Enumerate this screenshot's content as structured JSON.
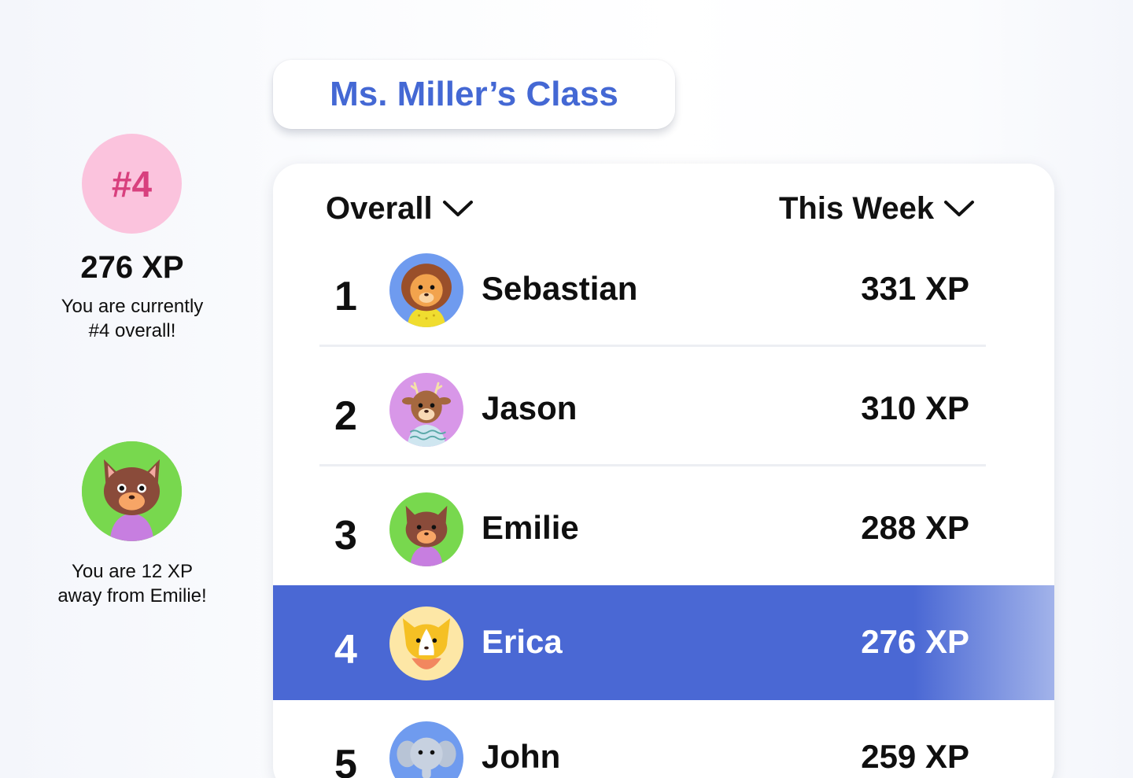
{
  "summary": {
    "rank_badge": "#4",
    "my_xp": "276 XP",
    "status_line1": "You are currently",
    "status_line2": "#4 overall!",
    "gap_line1": "You are 12 XP",
    "gap_line2": "away from Emilie!",
    "rival_avatar_icon": "cat-avatar-icon"
  },
  "board": {
    "class_title": "Ms. Miller’s Class",
    "filter_overall": "Overall",
    "filter_week": "This Week",
    "rows": [
      {
        "rank": "1",
        "name": "Sebastian",
        "xp": "331 XP",
        "avatar": "lion-avatar-icon",
        "avatar_bg": "#6f9bef"
      },
      {
        "rank": "2",
        "name": "Jason",
        "xp": "310 XP",
        "avatar": "deer-avatar-icon",
        "avatar_bg": "#d897e8"
      },
      {
        "rank": "3",
        "name": "Emilie",
        "xp": "288 XP",
        "avatar": "cat-avatar-icon",
        "avatar_bg": "#78d84e"
      },
      {
        "rank": "4",
        "name": "Erica",
        "xp": "276 XP",
        "avatar": "corgi-avatar-icon",
        "avatar_bg": "#fde7a6",
        "current_user": true
      },
      {
        "rank": "5",
        "name": "John",
        "xp": "259 XP",
        "avatar": "elephant-avatar-icon",
        "avatar_bg": "#6f9bef"
      }
    ]
  },
  "colors": {
    "accent_blue": "#4a68d4",
    "title_blue": "#4468d4",
    "badge_pink": "#fbc3dd",
    "badge_text": "#d8407e"
  }
}
